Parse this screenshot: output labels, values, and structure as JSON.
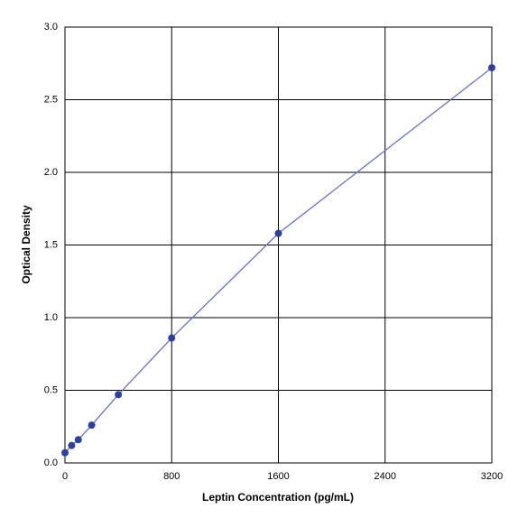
{
  "chart_data": {
    "type": "line",
    "x_label": "Leptin Concentration (pg/mL)",
    "y_label": "Optical Density",
    "x": [
      0,
      50,
      100,
      200,
      400,
      800,
      1600,
      3200
    ],
    "series": [
      {
        "color": "#2f3f9e",
        "values": [
          0.07,
          0.12,
          0.16,
          0.26,
          0.47,
          0.86,
          1.58,
          2.72
        ]
      }
    ],
    "xlim": [
      0,
      3200
    ],
    "xticks": [
      0,
      800,
      1600,
      2400,
      3200
    ],
    "ylim": [
      0,
      3
    ],
    "yticks": [
      {
        "value": 0,
        "label": "0.0"
      },
      0.5,
      {
        "value": 1,
        "label": "1.0"
      },
      1.5,
      {
        "value": 2,
        "label": "2.0"
      },
      2.5,
      {
        "value": 3,
        "label": "3.0"
      }
    ],
    "grid": true
  }
}
